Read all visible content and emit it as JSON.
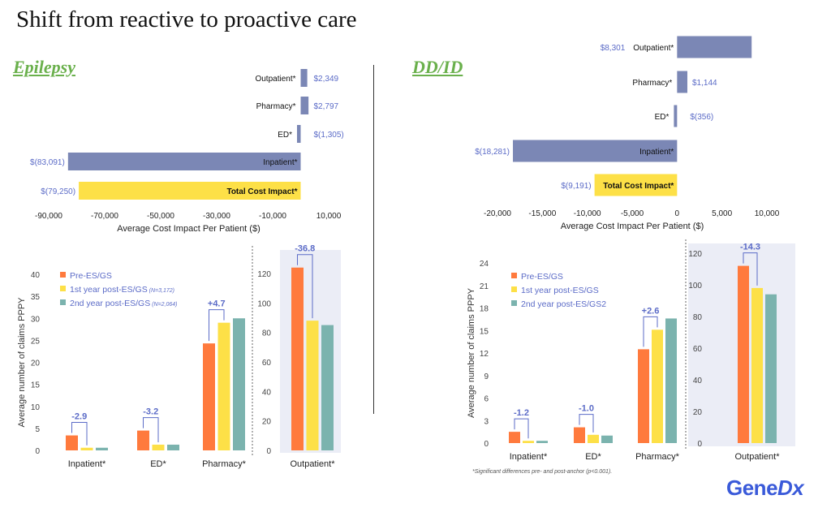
{
  "title": "Shift from reactive to proactive care",
  "sections": {
    "left": "Epilepsy",
    "right": "DD/ID"
  },
  "footnote": "*Significant differences pre- and post-anchor (p<0.001).",
  "logo": "GeneDx",
  "colors": {
    "cost_bar": "#7b87b5",
    "total_bar": "#fde047",
    "pre": "#ff7a3d",
    "post1": "#fde047",
    "post2": "#7bb3ae",
    "annotation": "#5b6bc7",
    "panel": "#ebedf6"
  },
  "chart_data": [
    {
      "type": "bar",
      "orientation": "horizontal",
      "title": "",
      "xlabel": "Average Cost Impact Per Patient ($)",
      "categories": [
        "Outpatient*",
        "Pharmacy*",
        "ED*",
        "Inpatient*",
        "Total Cost Impact*"
      ],
      "values": [
        2349,
        2797,
        -1305,
        -83091,
        -79250
      ],
      "data_labels": [
        "$2,349",
        "$2,797",
        "$(1,305)",
        "$(83,091)",
        "$(79,250)"
      ],
      "xlim": [
        -90000,
        10000
      ],
      "xticks": [
        -90000,
        -70000,
        -50000,
        -30000,
        -10000,
        10000
      ],
      "xtick_labels": [
        "-90,000",
        "-70,000",
        "-50,000",
        "-30,000",
        "-10,000",
        "10,000"
      ]
    },
    {
      "type": "bar",
      "orientation": "horizontal",
      "title": "",
      "xlabel": "Average Cost Impact Per Patient ($)",
      "categories": [
        "Outpatient*",
        "Pharmacy*",
        "ED*",
        "Inpatient*",
        "Total Cost Impact*"
      ],
      "values": [
        8301,
        1144,
        -356,
        -18281,
        -9191
      ],
      "data_labels": [
        "$8,301",
        "$1,144",
        "$(356)",
        "$(18,281)",
        "$(9,191)"
      ],
      "xlim": [
        -20000,
        10000
      ],
      "xticks": [
        -20000,
        -15000,
        -10000,
        -5000,
        0,
        5000,
        10000
      ],
      "xtick_labels": [
        "-20,000",
        "-15,000",
        "-10,000",
        "-5,000",
        "0",
        "5,000",
        "10,000"
      ]
    },
    {
      "type": "bar",
      "title": "",
      "ylabel": "Average number of claims PPPY",
      "categories": [
        "Inpatient*",
        "ED*",
        "Pharmacy*",
        "Outpatient*"
      ],
      "series": [
        {
          "name": "Pre-ES/GS",
          "note": "",
          "values": [
            3.4,
            4.5,
            24.3,
            124
          ]
        },
        {
          "name": "1st year post-ES/GS",
          "note": "(N=3,172)",
          "values": [
            0.6,
            1.3,
            29.0,
            88
          ]
        },
        {
          "name": "2nd year post-ES/GS",
          "note": "(N=2,064)",
          "values": [
            0.6,
            1.3,
            30.0,
            85
          ]
        }
      ],
      "annotations": [
        "-2.9",
        "-3.2",
        "+4.7",
        "-36.8"
      ],
      "ylim_left": [
        0,
        40
      ],
      "yticks_left": [
        "0",
        "5",
        "10",
        "15",
        "20",
        "25",
        "30",
        "35",
        "40"
      ],
      "ylim_right": [
        0,
        120
      ],
      "yticks_right": [
        "0",
        "20",
        "40",
        "60",
        "80",
        "100",
        "120"
      ]
    },
    {
      "type": "bar",
      "title": "",
      "ylabel": "Average number of claims PPPY",
      "categories": [
        "Inpatient*",
        "ED*",
        "Pharmacy*",
        "Outpatient*"
      ],
      "series": [
        {
          "name": "Pre-ES/GS",
          "note": "",
          "values": [
            1.5,
            2.1,
            12.5,
            112
          ]
        },
        {
          "name": "1st year post-ES/GS",
          "note": "",
          "values": [
            0.3,
            1.1,
            15.1,
            98
          ]
        },
        {
          "name": "2nd year post-ES/GS2",
          "note": "",
          "values": [
            0.3,
            1.0,
            16.6,
            94
          ]
        }
      ],
      "annotations": [
        "-1.2",
        "-1.0",
        "+2.6",
        "-14.3"
      ],
      "ylim_left": [
        0,
        24
      ],
      "yticks_left": [
        "0",
        "3",
        "6",
        "9",
        "12",
        "15",
        "18",
        "21",
        "24"
      ],
      "ylim_right": [
        0,
        120
      ],
      "yticks_right": [
        "0",
        "20",
        "40",
        "60",
        "80",
        "100",
        "120"
      ]
    }
  ]
}
